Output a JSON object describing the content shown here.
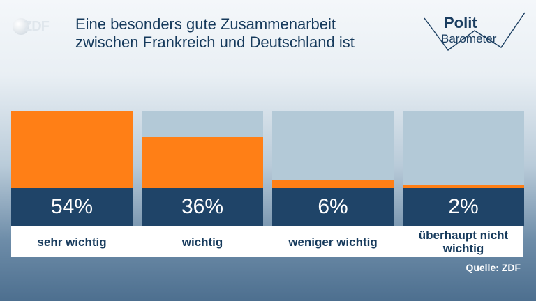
{
  "logo": {
    "text": "ZDF"
  },
  "branding": {
    "line1": "Polit",
    "line2": "Barometer"
  },
  "title_lines": [
    "Eine besonders gute Zusammenarbeit",
    "zwischen Frankreich und Deutschland ist"
  ],
  "source": "Quelle: ZDF",
  "colors": {
    "bar": "#ff7f16",
    "bar_background": "#b3c9d7",
    "value_box": "#1f4468",
    "title": "#163a5c"
  },
  "chart_data": {
    "type": "bar",
    "title": "Eine besonders gute Zusammenarbeit zwischen Frankreich und Deutschland ist",
    "categories": [
      "sehr wichtig",
      "wichtig",
      "weniger wichtig",
      "überhaupt nicht wichtig"
    ],
    "values": [
      54,
      36,
      6,
      2
    ],
    "value_labels": [
      "54%",
      "36%",
      "6%",
      "2%"
    ],
    "unit": "%",
    "ylim": [
      0,
      54
    ],
    "grid": false,
    "legend": "none"
  }
}
